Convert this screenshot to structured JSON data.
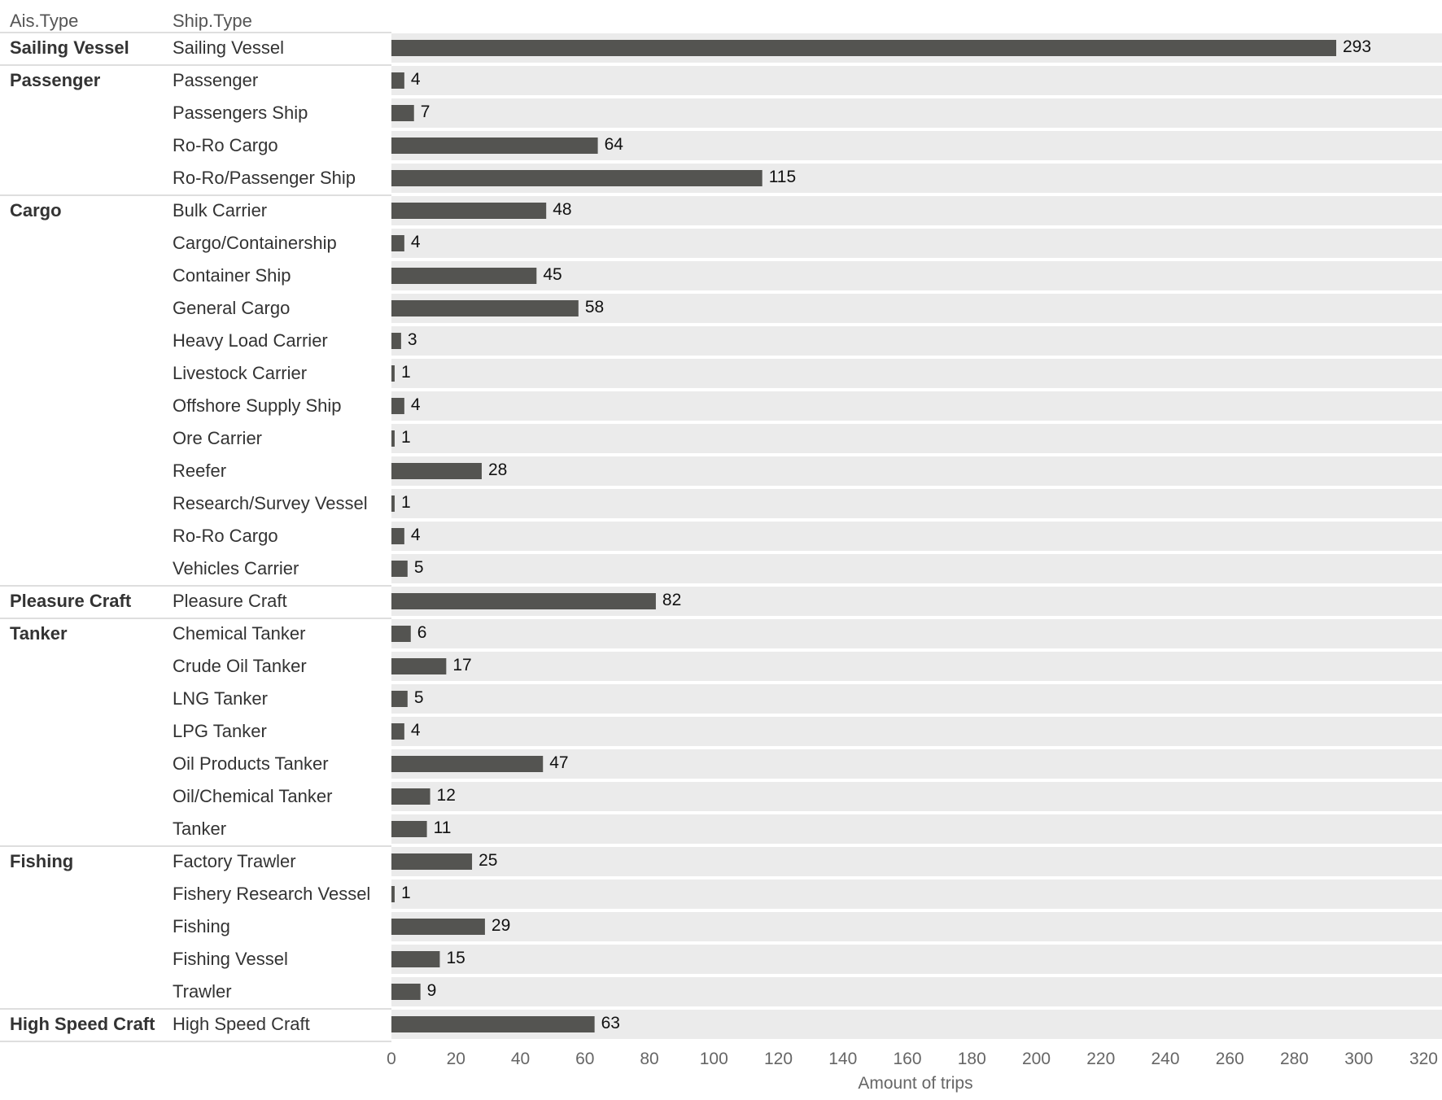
{
  "chart_data": {
    "type": "bar",
    "orientation": "horizontal",
    "row_headers": [
      "Ais.Type",
      "Ship.Type"
    ],
    "xlabel": "Amount of trips",
    "xlim": [
      0,
      320
    ],
    "xticks": [
      0,
      20,
      40,
      60,
      80,
      100,
      120,
      140,
      160,
      180,
      200,
      220,
      240,
      260,
      280,
      300,
      320
    ],
    "bar_color": "#545451",
    "band_color": "#ebebeb",
    "groups": [
      {
        "name": "Sailing Vessel",
        "items": [
          {
            "label": "Sailing Vessel",
            "value": 293
          }
        ]
      },
      {
        "name": "Passenger",
        "items": [
          {
            "label": "Passenger",
            "value": 4
          },
          {
            "label": "Passengers Ship",
            "value": 7
          },
          {
            "label": "Ro-Ro Cargo",
            "value": 64
          },
          {
            "label": "Ro-Ro/Passenger Ship",
            "value": 115
          }
        ]
      },
      {
        "name": "Cargo",
        "items": [
          {
            "label": "Bulk Carrier",
            "value": 48
          },
          {
            "label": "Cargo/Containership",
            "value": 4
          },
          {
            "label": "Container Ship",
            "value": 45
          },
          {
            "label": "General Cargo",
            "value": 58
          },
          {
            "label": "Heavy Load Carrier",
            "value": 3
          },
          {
            "label": "Livestock Carrier",
            "value": 1
          },
          {
            "label": "Offshore Supply Ship",
            "value": 4
          },
          {
            "label": "Ore Carrier",
            "value": 1
          },
          {
            "label": "Reefer",
            "value": 28
          },
          {
            "label": "Research/Survey Vessel",
            "value": 1
          },
          {
            "label": "Ro-Ro Cargo",
            "value": 4
          },
          {
            "label": "Vehicles Carrier",
            "value": 5
          }
        ]
      },
      {
        "name": "Pleasure Craft",
        "items": [
          {
            "label": "Pleasure Craft",
            "value": 82
          }
        ]
      },
      {
        "name": "Tanker",
        "items": [
          {
            "label": "Chemical Tanker",
            "value": 6
          },
          {
            "label": "Crude Oil Tanker",
            "value": 17
          },
          {
            "label": "LNG Tanker",
            "value": 5
          },
          {
            "label": "LPG Tanker",
            "value": 4
          },
          {
            "label": "Oil Products Tanker",
            "value": 47
          },
          {
            "label": "Oil/Chemical Tanker",
            "value": 12
          },
          {
            "label": "Tanker",
            "value": 11
          }
        ]
      },
      {
        "name": "Fishing",
        "items": [
          {
            "label": "Factory Trawler",
            "value": 25
          },
          {
            "label": "Fishery Research Vessel",
            "value": 1
          },
          {
            "label": "Fishing",
            "value": 29
          },
          {
            "label": "Fishing Vessel",
            "value": 15
          },
          {
            "label": "Trawler",
            "value": 9
          }
        ]
      },
      {
        "name": "High Speed Craft",
        "items": [
          {
            "label": "High Speed Craft",
            "value": 63
          }
        ]
      }
    ]
  }
}
